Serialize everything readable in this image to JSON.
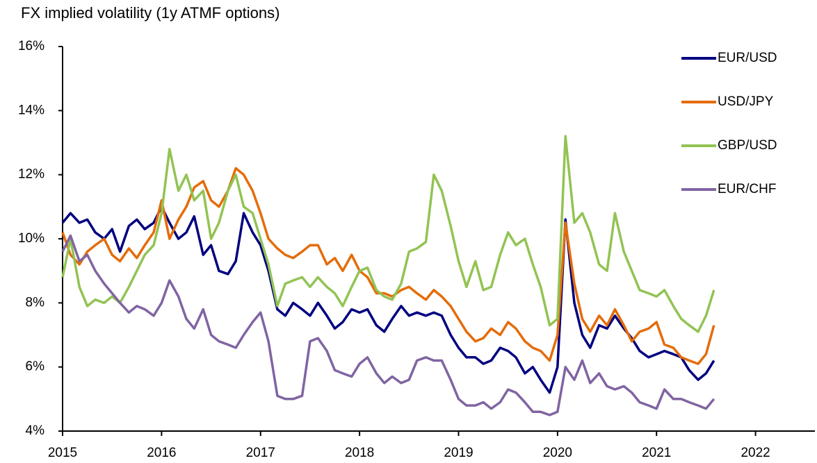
{
  "chart_data": {
    "type": "line",
    "title": "FX implied volatility (1y ATMF options)",
    "x": [
      2015,
      2015.08,
      2015.17,
      2015.25,
      2015.33,
      2015.42,
      2015.5,
      2015.58,
      2015.67,
      2015.75,
      2015.83,
      2015.92,
      2016,
      2016.08,
      2016.17,
      2016.25,
      2016.33,
      2016.42,
      2016.5,
      2016.58,
      2016.67,
      2016.75,
      2016.83,
      2016.92,
      2017,
      2017.08,
      2017.17,
      2017.25,
      2017.33,
      2017.42,
      2017.5,
      2017.58,
      2017.67,
      2017.75,
      2017.83,
      2017.92,
      2018,
      2018.08,
      2018.17,
      2018.25,
      2018.33,
      2018.42,
      2018.5,
      2018.58,
      2018.67,
      2018.75,
      2018.83,
      2018.92,
      2019,
      2019.08,
      2019.17,
      2019.25,
      2019.33,
      2019.42,
      2019.5,
      2019.58,
      2019.67,
      2019.75,
      2019.83,
      2019.92,
      2020,
      2020.08,
      2020.17,
      2020.25,
      2020.33,
      2020.42,
      2020.5,
      2020.58,
      2020.67,
      2020.75,
      2020.83,
      2020.92,
      2021,
      2021.08,
      2021.17,
      2021.25,
      2021.33,
      2021.42,
      2021.5,
      2021.58
    ],
    "series": [
      {
        "name": "EUR/USD",
        "color": "#000080",
        "values": [
          10.5,
          10.8,
          10.5,
          10.6,
          10.2,
          10.0,
          10.3,
          9.6,
          10.4,
          10.6,
          10.3,
          10.5,
          11.0,
          10.5,
          10.0,
          10.2,
          10.7,
          9.5,
          9.8,
          9.0,
          8.9,
          9.3,
          10.8,
          10.2,
          9.8,
          9.0,
          7.8,
          7.6,
          8.0,
          7.8,
          7.6,
          8.0,
          7.6,
          7.2,
          7.4,
          7.8,
          7.7,
          7.8,
          7.3,
          7.1,
          7.5,
          7.9,
          7.6,
          7.7,
          7.6,
          7.7,
          7.6,
          7.0,
          6.6,
          6.3,
          6.3,
          6.1,
          6.2,
          6.6,
          6.5,
          6.3,
          5.8,
          6.0,
          5.6,
          5.2,
          6.0,
          10.6,
          8.0,
          7.0,
          6.6,
          7.3,
          7.2,
          7.6,
          7.2,
          6.9,
          6.5,
          6.3,
          6.4,
          6.5,
          6.4,
          6.3,
          5.9,
          5.6,
          5.8,
          6.2
        ]
      },
      {
        "name": "USD/JPY",
        "color": "#e46c0a",
        "values": [
          10.2,
          9.5,
          9.2,
          9.6,
          9.8,
          10.0,
          9.5,
          9.3,
          9.7,
          9.4,
          9.8,
          10.2,
          11.2,
          10.0,
          10.6,
          11.0,
          11.6,
          11.8,
          11.2,
          11.0,
          11.5,
          12.2,
          12.0,
          11.5,
          10.8,
          10.0,
          9.7,
          9.5,
          9.4,
          9.6,
          9.8,
          9.8,
          9.2,
          9.4,
          9.0,
          9.5,
          9.0,
          8.8,
          8.3,
          8.3,
          8.2,
          8.4,
          8.5,
          8.3,
          8.1,
          8.4,
          8.2,
          7.9,
          7.5,
          7.1,
          6.8,
          6.9,
          7.2,
          7.0,
          7.4,
          7.2,
          6.8,
          6.6,
          6.5,
          6.2,
          7.0,
          10.5,
          8.6,
          7.5,
          7.1,
          7.6,
          7.3,
          7.8,
          7.3,
          6.8,
          7.1,
          7.2,
          7.4,
          6.7,
          6.6,
          6.3,
          6.2,
          6.1,
          6.4,
          7.3
        ]
      },
      {
        "name": "GBP/USD",
        "color": "#92c353",
        "values": [
          8.8,
          10.0,
          8.5,
          7.9,
          8.1,
          8.0,
          8.2,
          8.0,
          8.5,
          9.0,
          9.5,
          9.8,
          10.8,
          12.8,
          11.5,
          12.0,
          11.2,
          11.5,
          10.0,
          10.5,
          11.5,
          12.0,
          11.0,
          10.8,
          10.0,
          9.2,
          7.9,
          8.6,
          8.7,
          8.8,
          8.5,
          8.8,
          8.5,
          8.3,
          7.9,
          8.5,
          9.0,
          9.1,
          8.4,
          8.2,
          8.1,
          8.6,
          9.6,
          9.7,
          9.9,
          12.0,
          11.5,
          10.4,
          9.3,
          8.5,
          9.3,
          8.4,
          8.5,
          9.5,
          10.2,
          9.8,
          10.0,
          9.2,
          8.5,
          7.3,
          7.5,
          13.2,
          10.5,
          10.8,
          10.2,
          9.2,
          9.0,
          10.8,
          9.6,
          9.0,
          8.4,
          8.3,
          8.2,
          8.4,
          7.9,
          7.5,
          7.3,
          7.1,
          7.6,
          8.4
        ]
      },
      {
        "name": "EUR/CHF",
        "color": "#8064a2",
        "values": [
          9.6,
          10.1,
          9.3,
          9.5,
          9.0,
          8.6,
          8.3,
          8.0,
          7.7,
          7.9,
          7.8,
          7.6,
          8.0,
          8.7,
          8.2,
          7.5,
          7.2,
          7.8,
          7.0,
          6.8,
          6.7,
          6.6,
          7.0,
          7.4,
          7.7,
          6.8,
          5.1,
          5.0,
          5.0,
          5.1,
          6.8,
          6.9,
          6.5,
          5.9,
          5.8,
          5.7,
          6.1,
          6.3,
          5.8,
          5.5,
          5.7,
          5.5,
          5.6,
          6.2,
          6.3,
          6.2,
          6.2,
          5.6,
          5.0,
          4.8,
          4.8,
          4.9,
          4.7,
          4.9,
          5.3,
          5.2,
          4.9,
          4.6,
          4.6,
          4.5,
          4.6,
          6.0,
          5.6,
          6.2,
          5.5,
          5.8,
          5.4,
          5.3,
          5.4,
          5.2,
          4.9,
          4.8,
          4.7,
          5.3,
          5.0,
          5.0,
          4.9,
          4.8,
          4.7,
          5.0
        ]
      }
    ],
    "xlim": [
      2015,
      2022.6
    ],
    "xticks": [
      2015,
      2016,
      2017,
      2018,
      2019,
      2020,
      2021,
      2022
    ],
    "ylim": [
      4,
      16
    ],
    "yticks": [
      {
        "value": 4,
        "label": "4%"
      },
      {
        "value": 6,
        "label": "6%"
      },
      {
        "value": 8,
        "label": "8%"
      },
      {
        "value": 10,
        "label": "10%"
      },
      {
        "value": 12,
        "label": "12%"
      },
      {
        "value": 14,
        "label": "14%"
      },
      {
        "value": 16,
        "label": "16%"
      }
    ],
    "legend": "upper right"
  }
}
